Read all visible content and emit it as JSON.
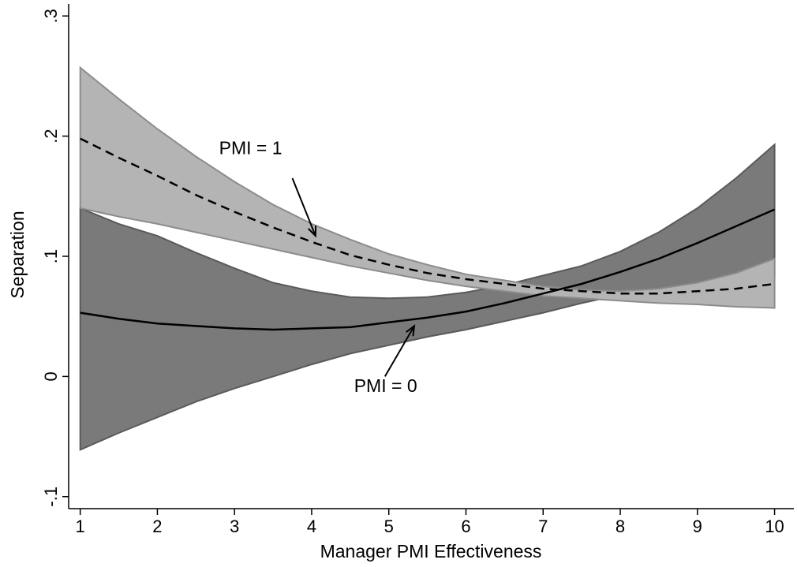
{
  "chart_data": {
    "type": "line",
    "title": "",
    "xlabel": "Manager PMI Effectiveness",
    "ylabel": "Separation",
    "xlim": [
      0.85,
      10.25
    ],
    "ylim": [
      -0.11,
      0.31
    ],
    "xticks": [
      1,
      2,
      3,
      4,
      5,
      6,
      7,
      8,
      9,
      10
    ],
    "xtick_labels": [
      "1",
      "2",
      "3",
      "4",
      "5",
      "6",
      "7",
      "8",
      "9",
      "10"
    ],
    "yticks": [
      -0.1,
      0,
      0.1,
      0.2,
      0.3
    ],
    "ytick_labels": [
      "-.1",
      "0",
      ".1",
      ".2",
      ".3"
    ],
    "grid": false,
    "legend": "none",
    "x": [
      1,
      1.5,
      2,
      2.5,
      3,
      3.5,
      4,
      4.5,
      5,
      5.5,
      6,
      6.5,
      7,
      7.5,
      8,
      8.5,
      9,
      9.5,
      10
    ],
    "series": [
      {
        "label": "PMI = 0",
        "style": "solid",
        "line_color": "#000000",
        "band_color": "#7a7a7a",
        "band_edge_color": "#5a5a5a",
        "values": [
          0.053,
          0.048,
          0.044,
          0.042,
          0.04,
          0.039,
          0.04,
          0.041,
          0.045,
          0.049,
          0.054,
          0.061,
          0.069,
          0.077,
          0.087,
          0.098,
          0.111,
          0.125,
          0.139
        ],
        "upper": [
          0.14,
          0.127,
          0.117,
          0.103,
          0.09,
          0.078,
          0.071,
          0.066,
          0.065,
          0.066,
          0.07,
          0.076,
          0.084,
          0.092,
          0.104,
          0.12,
          0.14,
          0.165,
          0.193
        ],
        "lower": [
          -0.061,
          -0.047,
          -0.034,
          -0.021,
          -0.01,
          0.0,
          0.01,
          0.019,
          0.026,
          0.033,
          0.039,
          0.046,
          0.053,
          0.061,
          0.068,
          0.068,
          0.07,
          0.075,
          0.083
        ],
        "annotation": "PMI = 0"
      },
      {
        "label": "PMI = 1",
        "style": "dashed",
        "line_color": "#000000",
        "band_color": "#b4b4b4",
        "band_edge_color": "#8c8c8c",
        "values": [
          0.198,
          0.182,
          0.167,
          0.151,
          0.137,
          0.124,
          0.112,
          0.101,
          0.093,
          0.086,
          0.081,
          0.077,
          0.073,
          0.071,
          0.069,
          0.069,
          0.071,
          0.073,
          0.077
        ],
        "upper": [
          0.257,
          0.231,
          0.206,
          0.183,
          0.162,
          0.143,
          0.127,
          0.114,
          0.102,
          0.093,
          0.085,
          0.08,
          0.075,
          0.072,
          0.071,
          0.073,
          0.078,
          0.086,
          0.098
        ],
        "lower": [
          0.14,
          0.133,
          0.127,
          0.12,
          0.113,
          0.106,
          0.099,
          0.092,
          0.086,
          0.08,
          0.075,
          0.071,
          0.067,
          0.065,
          0.063,
          0.061,
          0.06,
          0.058,
          0.057
        ],
        "annotation": "PMI = 1"
      }
    ],
    "annotations": [
      {
        "text": "PMI = 1",
        "series": 1,
        "label_at": [
          2.8,
          0.185
        ],
        "arrow_from": [
          3.75,
          0.165
        ],
        "arrow_to": [
          4.05,
          0.117
        ]
      },
      {
        "text": "PMI = 0",
        "series": 0,
        "label_at": [
          4.55,
          -0.013
        ],
        "arrow_from": [
          4.95,
          0.0
        ],
        "arrow_to": [
          5.33,
          0.042
        ]
      }
    ]
  }
}
